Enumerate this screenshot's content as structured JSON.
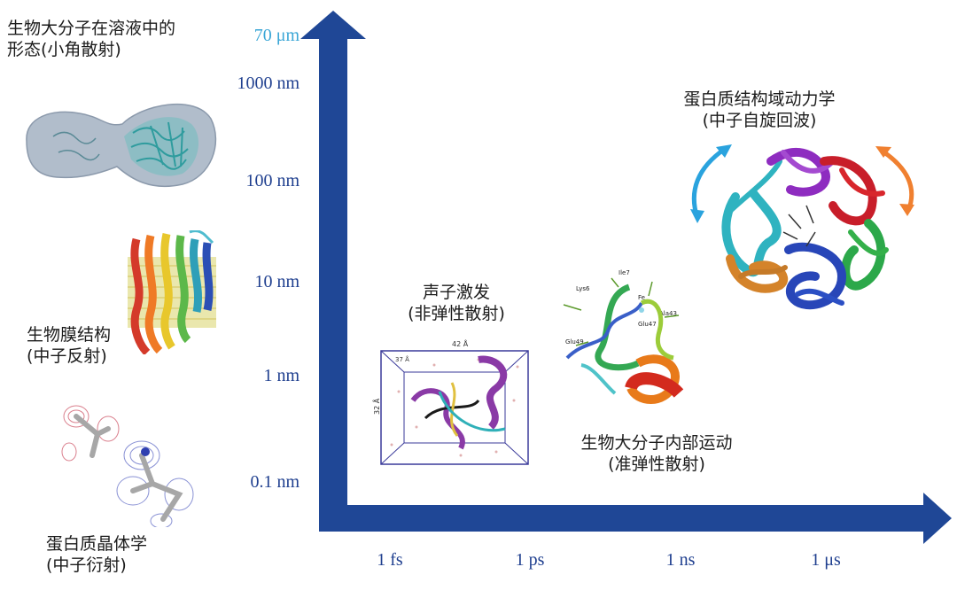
{
  "colors": {
    "axis": "#1f4796",
    "tick_text": "#1f3f8f",
    "tick_highlight": "#3aa6d6",
    "arrow_blue": "#2aa3de",
    "arrow_orange": "#f08030"
  },
  "y_axis": {
    "ticks": [
      "70 μm",
      "1000 nm",
      "100 nm",
      "10 nm",
      "1 nm",
      "0.1 nm"
    ]
  },
  "x_axis": {
    "ticks": [
      "1 fs",
      "1 ps",
      "1 ns",
      "1 μs"
    ]
  },
  "labels": {
    "saxs": [
      "生物大分子在溶液中的",
      "形态(小角散射)"
    ],
    "membrane": [
      "生物膜结构",
      "(中子反射)"
    ],
    "crystal": [
      "蛋白质晶体学",
      "(中子衍射)"
    ],
    "phonon": [
      "声子激发",
      "(非弹性散射)"
    ],
    "internal": [
      "生物大分子内部运动",
      "(准弹性散射)"
    ],
    "domain": [
      "蛋白质结构域动力学",
      "(中子自旋回波)"
    ]
  },
  "figure_text": {
    "box_width": "42 Å",
    "box_height": "32 Å",
    "box_depth": "37 Å",
    "residues": [
      "Lys6",
      "Ile7",
      "Fe",
      "Ala43",
      "Glu47",
      "Glu49"
    ]
  }
}
